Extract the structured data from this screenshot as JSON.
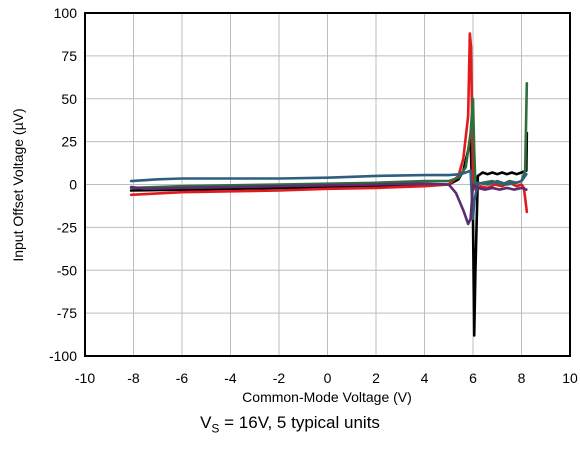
{
  "chart_data": {
    "type": "line",
    "title": "",
    "xlabel": "Common-Mode Voltage (V)",
    "ylabel": "Input Offset Voltage (µV)",
    "xlim": [
      -10,
      10
    ],
    "ylim": [
      -100,
      100
    ],
    "xticks": [
      -10,
      -8,
      -6,
      -4,
      -2,
      0,
      2,
      4,
      6,
      8,
      10
    ],
    "yticks": [
      -100,
      -75,
      -50,
      -25,
      0,
      25,
      50,
      75,
      100
    ],
    "xtick_labels": [
      "-10",
      "-8",
      "-6",
      "-4",
      "-2",
      "0",
      "2",
      "4",
      "6",
      "8",
      "10"
    ],
    "ytick_labels": [
      "-100",
      "-75",
      "-50",
      "-25",
      "0",
      "25",
      "50",
      "75",
      "100"
    ],
    "grid": true,
    "caption": {
      "prefix": "V",
      "subscript": "S",
      "suffix": " = 16V, 5 typical units"
    },
    "series": [
      {
        "color": "#000000",
        "points": [
          [
            -8.1,
            -3.5
          ],
          [
            -6,
            -3
          ],
          [
            -4,
            -2.5
          ],
          [
            -2,
            -2
          ],
          [
            0,
            -1.5
          ],
          [
            2,
            -1
          ],
          [
            4,
            -0.5
          ],
          [
            5,
            0
          ],
          [
            5.4,
            3
          ],
          [
            5.6,
            8
          ],
          [
            5.8,
            20
          ],
          [
            5.9,
            26
          ],
          [
            6.0,
            -20
          ],
          [
            6.05,
            -88
          ],
          [
            6.1,
            -50
          ],
          [
            6.2,
            5
          ],
          [
            6.4,
            7
          ],
          [
            6.6,
            6
          ],
          [
            6.8,
            7
          ],
          [
            7.0,
            6
          ],
          [
            7.2,
            7
          ],
          [
            7.4,
            6
          ],
          [
            7.6,
            7
          ],
          [
            7.8,
            6
          ],
          [
            8.0,
            7
          ],
          [
            8.2,
            8
          ],
          [
            8.22,
            30
          ]
        ]
      },
      {
        "color": "#e31a1c",
        "points": [
          [
            -8.1,
            -6
          ],
          [
            -6,
            -4.5
          ],
          [
            -4,
            -4
          ],
          [
            -2,
            -3.5
          ],
          [
            0,
            -2.5
          ],
          [
            2,
            -2
          ],
          [
            4,
            -1
          ],
          [
            5,
            0
          ],
          [
            5.4,
            5
          ],
          [
            5.6,
            15
          ],
          [
            5.8,
            40
          ],
          [
            5.87,
            88
          ],
          [
            5.92,
            80
          ],
          [
            6.0,
            0
          ],
          [
            6.1,
            -3
          ],
          [
            6.3,
            -1
          ],
          [
            6.6,
            -2
          ],
          [
            6.9,
            0
          ],
          [
            7.2,
            -1
          ],
          [
            7.5,
            1
          ],
          [
            7.8,
            -1
          ],
          [
            8.0,
            0
          ],
          [
            8.1,
            -2
          ],
          [
            8.22,
            -16
          ]
        ]
      },
      {
        "color": "#2e6f40",
        "points": [
          [
            -8.1,
            -2
          ],
          [
            -6,
            -1
          ],
          [
            -4,
            -0.5
          ],
          [
            -2,
            0
          ],
          [
            0,
            0.5
          ],
          [
            2,
            1
          ],
          [
            4,
            2
          ],
          [
            5,
            2
          ],
          [
            5.4,
            4
          ],
          [
            5.7,
            10
          ],
          [
            5.9,
            30
          ],
          [
            6.0,
            50
          ],
          [
            6.05,
            20
          ],
          [
            6.1,
            0
          ],
          [
            6.4,
            1
          ],
          [
            6.8,
            2
          ],
          [
            7.2,
            0
          ],
          [
            7.5,
            2
          ],
          [
            7.8,
            1
          ],
          [
            8.0,
            2
          ],
          [
            8.15,
            8
          ],
          [
            8.22,
            59
          ]
        ]
      },
      {
        "color": "#2e5f7f",
        "points": [
          [
            -8.1,
            2
          ],
          [
            -7,
            3
          ],
          [
            -6,
            3.5
          ],
          [
            -4,
            3.5
          ],
          [
            -2,
            3.5
          ],
          [
            0,
            4
          ],
          [
            2,
            5
          ],
          [
            4,
            5.5
          ],
          [
            5,
            5.5
          ],
          [
            5.5,
            6
          ],
          [
            5.9,
            8
          ],
          [
            6.0,
            -20
          ],
          [
            6.05,
            -10
          ],
          [
            6.2,
            1
          ],
          [
            6.6,
            0
          ],
          [
            7.0,
            2
          ],
          [
            7.4,
            0
          ],
          [
            7.8,
            1
          ],
          [
            8.0,
            2
          ],
          [
            8.2,
            6
          ]
        ]
      },
      {
        "color": "#5b2c6f",
        "points": [
          [
            -8.1,
            -1.5
          ],
          [
            -7.5,
            -2.5
          ],
          [
            -6,
            -2
          ],
          [
            -4,
            -1.5
          ],
          [
            -2,
            -1
          ],
          [
            0,
            -0.5
          ],
          [
            2,
            0
          ],
          [
            4,
            0.5
          ],
          [
            5,
            0
          ],
          [
            5.3,
            -5
          ],
          [
            5.6,
            -15
          ],
          [
            5.8,
            -23
          ],
          [
            5.9,
            -20
          ],
          [
            6.0,
            0
          ],
          [
            6.2,
            -2
          ],
          [
            6.5,
            -3
          ],
          [
            6.8,
            -2
          ],
          [
            7.1,
            -3
          ],
          [
            7.4,
            -2
          ],
          [
            7.7,
            -3
          ],
          [
            8.0,
            -2
          ],
          [
            8.2,
            -3
          ]
        ]
      }
    ]
  }
}
